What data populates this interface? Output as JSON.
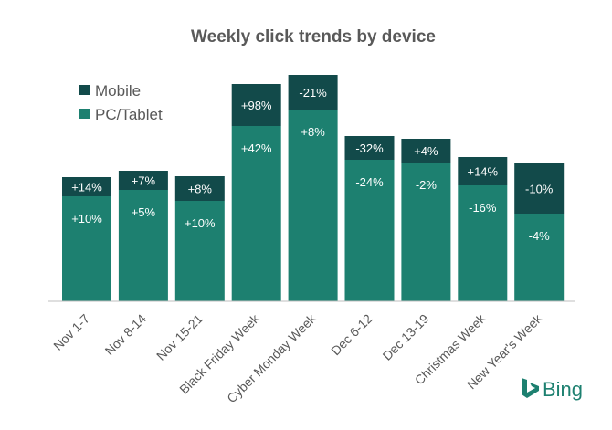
{
  "chart_data": {
    "type": "bar",
    "stacked": true,
    "title": "Weekly click trends by device",
    "xlabel": "",
    "ylabel": "",
    "grid": false,
    "legend_position": "top-left",
    "categories": [
      "Nov 1-7",
      "Nov 8-14",
      "Nov 15-21",
      "Black Friday Week",
      "Cyber Monday Week",
      "Dec 6-12",
      "Dec 13-19",
      "Christmas Week",
      "New Year's Week"
    ],
    "ylim": [
      0,
      250
    ],
    "series": [
      {
        "name": "PC/Tablet",
        "color": "#1d8070",
        "values": [
          115,
          122,
          110,
          192,
          210,
          155,
          152,
          127,
          96
        ],
        "labels": [
          "+10%",
          "+5%",
          "+10%",
          "+42%",
          "+8%",
          "-24%",
          "-2%",
          "-16%",
          "-4%"
        ]
      },
      {
        "name": "Mobile",
        "color": "#124a4a",
        "values": [
          21,
          21,
          27,
          46,
          38,
          26,
          26,
          31,
          55
        ],
        "labels": [
          "+14%",
          "+7%",
          "+8%",
          "+98%",
          "-21%",
          "-32%",
          "+4%",
          "+14%",
          "-10%"
        ]
      }
    ]
  },
  "legend": {
    "mobile": "Mobile",
    "pc_tablet": "PC/Tablet"
  },
  "branding": {
    "logo_text": "Bing",
    "logo_color": "#1d8070"
  },
  "colors": {
    "title": "#595959",
    "axis": "#bfbfbf",
    "tick_text": "#595959",
    "legend_text": "#595959",
    "bar_label_text": "#ffffff"
  }
}
